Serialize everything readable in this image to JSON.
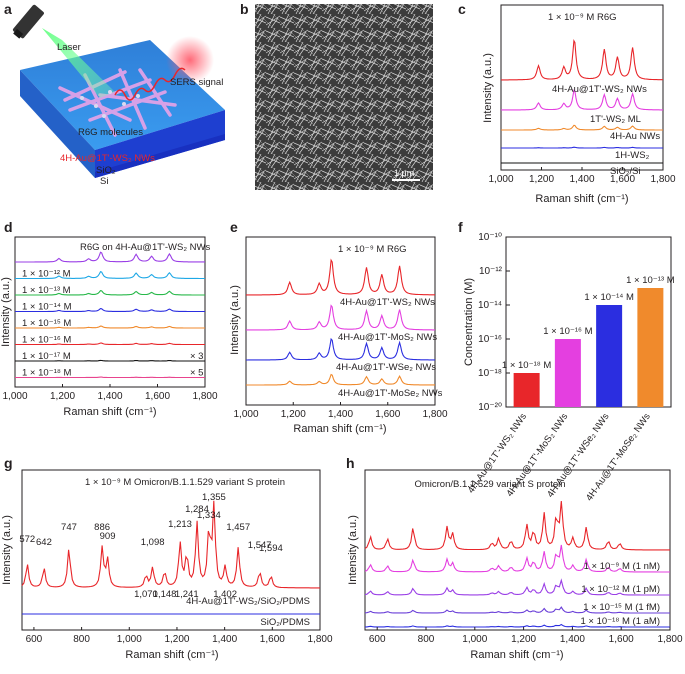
{
  "panel_letters": {
    "a": "a",
    "b": "b",
    "c": "c",
    "d": "d",
    "e": "e",
    "f": "f",
    "g": "g",
    "h": "h"
  },
  "colors": {
    "red": "#e8262a",
    "magenta": "#e43fe0",
    "orange": "#f08a2c",
    "blue": "#2b2ee0",
    "black": "#111111",
    "purple": "#9a3fe6",
    "cyan": "#1ea8e6",
    "green": "#28b84a",
    "pink": "#e8448e"
  },
  "panel_a": {
    "labels": {
      "laser": "Laser",
      "sers": "SERS signal",
      "r6g": "R6G molecules",
      "nws": "4H-Au@1T'-WS₂ NWs",
      "sio2": "SiO₂",
      "si": "Si"
    }
  },
  "panel_b": {
    "scalebar": "1 μm"
  },
  "chart_data": [
    {
      "panel": "c",
      "type": "line",
      "annotation": "1 × 10⁻⁹ M R6G",
      "xlabel": "Raman shift (cm⁻¹)",
      "ylabel": "Intensity (a.u.)",
      "xlim": [
        1000,
        1800
      ],
      "xticks": [
        "1,000",
        "1,200",
        "1,400",
        "1,600",
        "1,800"
      ],
      "series": [
        {
          "name": "4H-Au@1T'-WS₂ NWs",
          "color": "#e8262a",
          "amp": 1.0
        },
        {
          "name": "1T'-WS₂ ML",
          "color": "#e43fe0",
          "amp": 0.5
        },
        {
          "name": "4H-Au NWs",
          "color": "#f08a2c",
          "amp": 0.12
        },
        {
          "name": "1H-WS₂",
          "color": "#2b2ee0",
          "amp": 0.02
        },
        {
          "name": "SiO₂/Si",
          "color": "#111111",
          "amp": 0.0
        }
      ]
    },
    {
      "panel": "d",
      "type": "line",
      "annotation": "R6G on 4H-Au@1T'-WS₂ NWs",
      "xlabel": "Raman shift (cm⁻¹)",
      "ylabel": "Intensity (a.u.)",
      "xlim": [
        1000,
        1800
      ],
      "xticks": [
        "1,000",
        "1,200",
        "1,400",
        "1,600",
        "1,800"
      ],
      "series": [
        {
          "name": "",
          "color": "#9a3fe6",
          "amp": 1.0
        },
        {
          "name": "1 × 10⁻¹² M",
          "color": "#1ea8e6",
          "amp": 0.7
        },
        {
          "name": "1 × 10⁻¹³ M",
          "color": "#28b84a",
          "amp": 0.45
        },
        {
          "name": "1 × 10⁻¹⁴ M",
          "color": "#2b2ee0",
          "amp": 0.3
        },
        {
          "name": "1 × 10⁻¹⁵ M",
          "color": "#f08a2c",
          "amp": 0.2
        },
        {
          "name": "1 × 10⁻¹⁶ M",
          "color": "#e8262a",
          "amp": 0.15
        },
        {
          "name": "1 × 10⁻¹⁷ M",
          "color": "#111111",
          "amp": 0.06,
          "scale": "× 3"
        },
        {
          "name": "1 × 10⁻¹⁸ M",
          "color": "#e8448e",
          "amp": 0.04,
          "scale": "× 5"
        }
      ]
    },
    {
      "panel": "e",
      "type": "line",
      "annotation": "1 × 10⁻⁹ M R6G",
      "xlabel": "Raman shift (cm⁻¹)",
      "ylabel": "Intensity (a.u.)",
      "xlim": [
        1000,
        1800
      ],
      "xticks": [
        "1,000",
        "1,200",
        "1,400",
        "1,600",
        "1,800"
      ],
      "series": [
        {
          "name": "4H-Au@1T'-WS₂ NWs",
          "color": "#e8262a",
          "amp": 1.0
        },
        {
          "name": "4H-Au@1T'-MoS₂ NWs",
          "color": "#e43fe0",
          "amp": 0.7
        },
        {
          "name": "4H-Au@1T'-WSe₂ NWs",
          "color": "#2b2ee0",
          "amp": 0.6
        },
        {
          "name": "4H-Au@1T'-MoSe₂ NWs",
          "color": "#f08a2c",
          "amp": 0.3
        }
      ]
    },
    {
      "panel": "f",
      "type": "bar",
      "ylabel": "Concentration (M)",
      "yscale": "log",
      "ylim_exp": [
        -20,
        -10
      ],
      "ytick_labels": [
        "10⁻²⁰",
        "10⁻¹⁸",
        "10⁻¹⁶",
        "10⁻¹⁴",
        "10⁻¹²",
        "10⁻¹⁰"
      ],
      "categories": [
        "4H-Au@1T'-WS₂ NWs",
        "4H-Au@1T'-MoS₂ NWs",
        "4H-Au@1T'-WSe₂ NWs",
        "4H-Au@1T'-MoSe₂ NWs"
      ],
      "values_exp": [
        -18,
        -16,
        -14,
        -13
      ],
      "value_labels": [
        "1 × 10⁻¹⁸ M",
        "1 × 10⁻¹⁶ M",
        "1 × 10⁻¹⁴ M",
        "1 × 10⁻¹³ M"
      ],
      "colors": [
        "#e8262a",
        "#e43fe0",
        "#2b2ee0",
        "#f08a2c"
      ]
    },
    {
      "panel": "g",
      "type": "line",
      "annotation": "1 × 10⁻⁹ M Omicron/B.1.1.529 variant S protein",
      "xlabel": "Raman shift (cm⁻¹)",
      "ylabel": "Intensity (a.u.)",
      "xlim": [
        550,
        1800
      ],
      "xticks": [
        "600",
        "800",
        "1,000",
        "1,200",
        "1,400",
        "1,600",
        "1,800"
      ],
      "peaks": [
        "572",
        "642",
        "747",
        "886",
        "909",
        "1,070",
        "1,098",
        "1,148",
        "1,213",
        "1,241",
        "1,284",
        "1,334",
        "1,355",
        "1,402",
        "1,457",
        "1,547",
        "1,594"
      ],
      "series": [
        {
          "name": "4H-Au@1T'-WS₂/SiO₂/PDMS",
          "color": "#e8262a"
        },
        {
          "name": "SiO₂/PDMS",
          "color": "#2b2ee0"
        }
      ]
    },
    {
      "panel": "h",
      "type": "line",
      "annotation": "Omicron/B.1.1.529 variant S protein",
      "xlabel": "Raman shift (cm⁻¹)",
      "ylabel": "Intensity (a.u.)",
      "xlim": [
        550,
        1800
      ],
      "xticks": [
        "600",
        "800",
        "1,000",
        "1,200",
        "1,400",
        "1,600",
        "1,800"
      ],
      "series": [
        {
          "name": "",
          "color": "#e8262a",
          "amp": 1.0
        },
        {
          "name": "1 × 10⁻⁹ M (1 nM)",
          "color": "#e43fe0",
          "amp": 0.55
        },
        {
          "name": "1 × 10⁻¹² M (1 pM)",
          "color": "#9a3fe6",
          "amp": 0.3
        },
        {
          "name": "1 × 10⁻¹⁵ M (1 fM)",
          "color": "#6a3fd8",
          "amp": 0.12
        },
        {
          "name": "1 × 10⁻¹⁸ M (1 aM)",
          "color": "#2b2ee0",
          "amp": 0.05
        }
      ]
    }
  ]
}
